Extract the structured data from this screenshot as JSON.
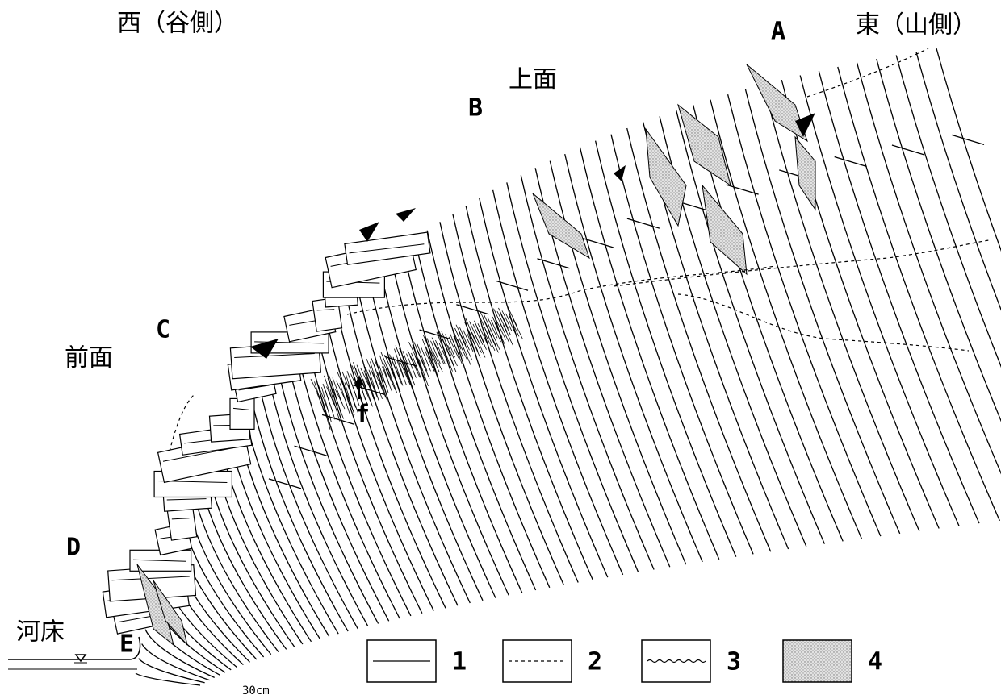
{
  "labels": {
    "west": "西（谷側）",
    "east": "東（山側）",
    "top_face": "上面",
    "front_face": "前面",
    "river_bed": "河床",
    "points": [
      "A",
      "B",
      "C",
      "D",
      "E"
    ],
    "f": "f",
    "scale": "30cm"
  },
  "legend": [
    {
      "label": "1"
    },
    {
      "label": "2"
    },
    {
      "label": "3"
    },
    {
      "label": "4"
    }
  ]
}
